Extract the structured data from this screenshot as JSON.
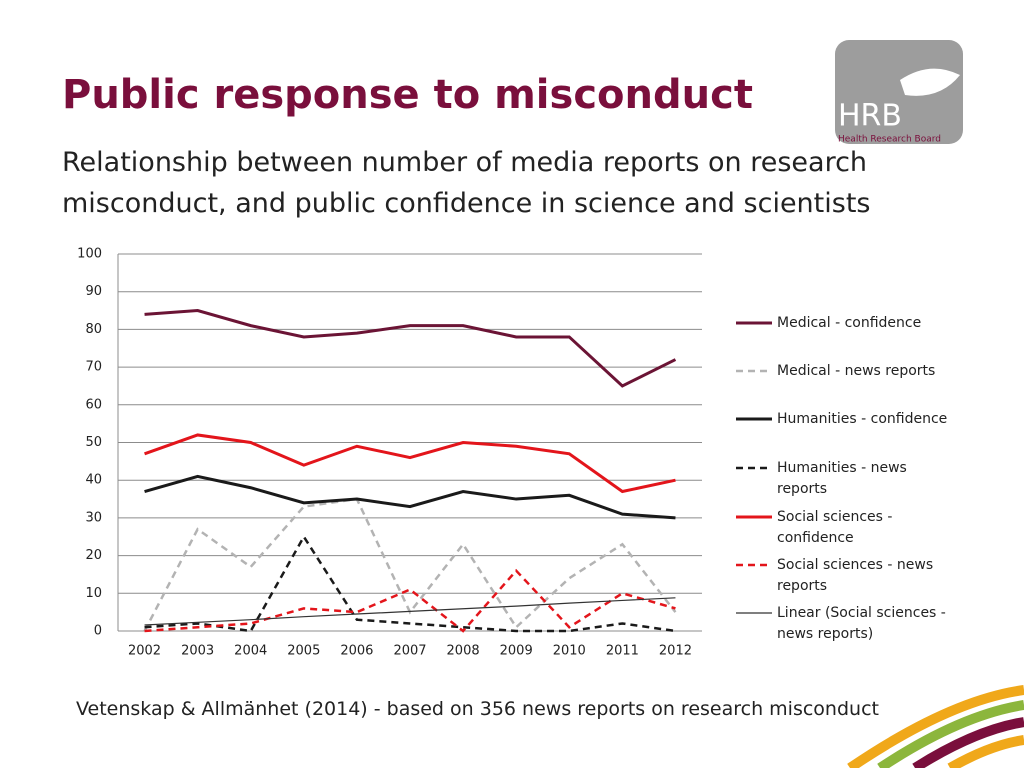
{
  "header": {
    "title": "Public response to misconduct",
    "subtitle": "Relationship between number of media reports on research misconduct, and public confidence in science and scientists"
  },
  "logo": {
    "mark": "HRB",
    "name": "Health Research Board"
  },
  "chart_data": {
    "type": "line",
    "categories": [
      "2002",
      "2003",
      "2004",
      "2005",
      "2006",
      "2007",
      "2008",
      "2009",
      "2010",
      "2011",
      "2012"
    ],
    "ylim": [
      0,
      100
    ],
    "yticks": [
      0,
      10,
      20,
      30,
      40,
      50,
      60,
      70,
      80,
      90,
      100
    ],
    "grid": true,
    "legend": "right",
    "series": [
      {
        "name": "Medical - confidence",
        "color": "#6b1435",
        "style": "solid",
        "values": [
          84,
          85,
          81,
          78,
          79,
          81,
          81,
          78,
          78,
          65,
          72
        ]
      },
      {
        "name": "Medical - news reports",
        "color": "#b3b3b3",
        "style": "dashed",
        "values": [
          0,
          27,
          17,
          33,
          35,
          5,
          23,
          1,
          14,
          23,
          5
        ]
      },
      {
        "name": "Humanities - confidence",
        "color": "#1a1a1a",
        "style": "solid",
        "values": [
          37,
          41,
          38,
          34,
          35,
          33,
          37,
          35,
          36,
          31,
          30
        ]
      },
      {
        "name": "Humanities - news reports",
        "color": "#1a1a1a",
        "style": "dashed",
        "values": [
          1,
          2,
          0,
          25,
          3,
          2,
          1,
          0,
          0,
          2,
          0
        ]
      },
      {
        "name": "Social sciences - confidence",
        "color": "#e3151b",
        "style": "solid",
        "values": [
          47,
          52,
          50,
          44,
          49,
          46,
          50,
          49,
          47,
          37,
          40
        ]
      },
      {
        "name": "Social sciences - news reports",
        "color": "#e3151b",
        "style": "dashed",
        "values": [
          0,
          1,
          2,
          6,
          5,
          11,
          0,
          16,
          1,
          10,
          6
        ]
      },
      {
        "name": "Linear (Social sciences - news reports)",
        "color": "#333333",
        "style": "thin",
        "values": [
          1.6,
          2.3,
          3.0,
          3.8,
          4.5,
          5.2,
          5.9,
          6.6,
          7.4,
          8.1,
          8.8
        ]
      }
    ]
  },
  "source": "Vetenskap & Allmänhet  (2014) - based on 356 news reports on research misconduct"
}
